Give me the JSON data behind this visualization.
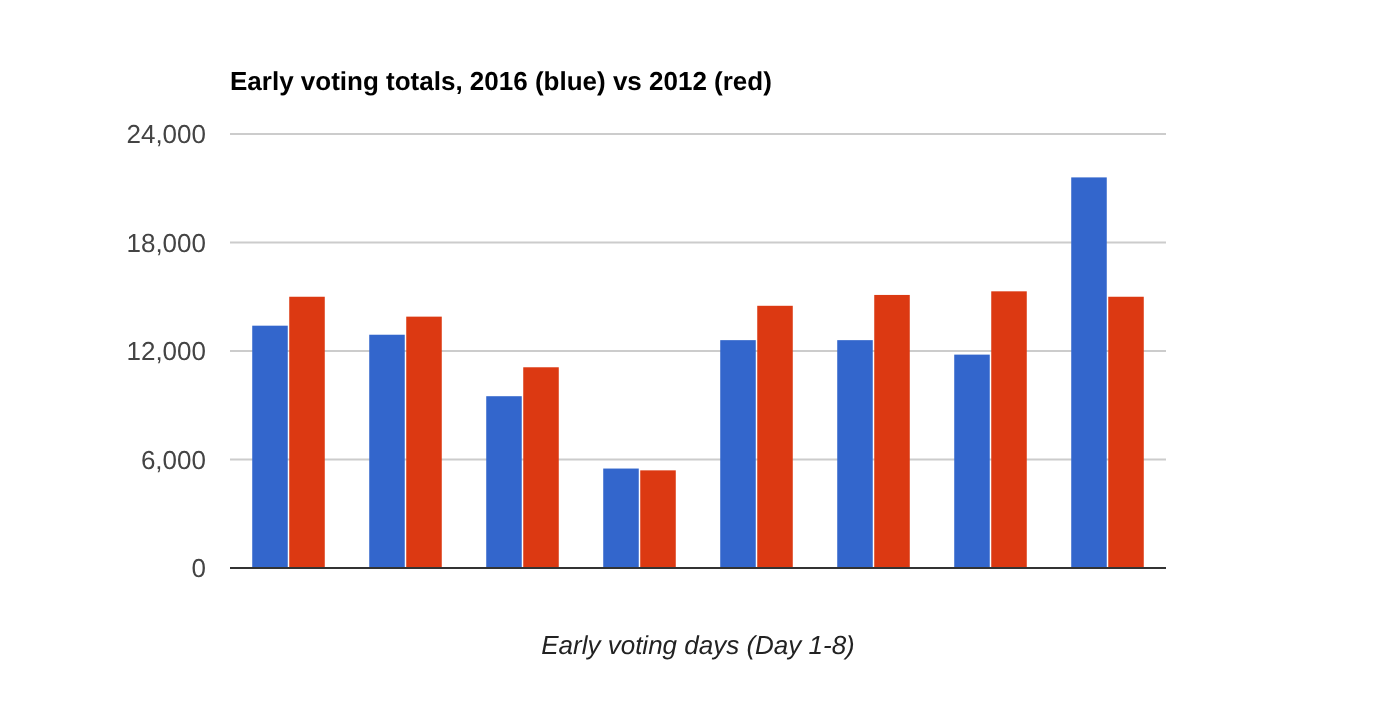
{
  "chart_data": {
    "type": "bar",
    "title": "Early voting totals, 2016 (blue) vs 2012 (red)",
    "xlabel": "Early voting days (Day 1-8)",
    "categories": [
      null,
      null,
      null,
      null,
      null,
      null,
      null,
      null
    ],
    "series": [
      {
        "color": "#3366cc",
        "values": [
          13400,
          12900,
          9500,
          5500,
          12600,
          12600,
          11800,
          21600
        ]
      },
      {
        "color": "#dc3912",
        "values": [
          15000,
          13900,
          11100,
          5400,
          14500,
          15100,
          15300,
          15000
        ]
      }
    ],
    "ylim": [
      0,
      24000
    ],
    "yticks": [
      {
        "value": 0,
        "label": "0"
      },
      {
        "value": 6000,
        "label": "6,000"
      },
      {
        "value": 12000,
        "label": "12,000"
      },
      {
        "value": 18000,
        "label": "18,000"
      },
      {
        "value": 24000,
        "label": "24,000"
      }
    ],
    "grid": "y"
  }
}
